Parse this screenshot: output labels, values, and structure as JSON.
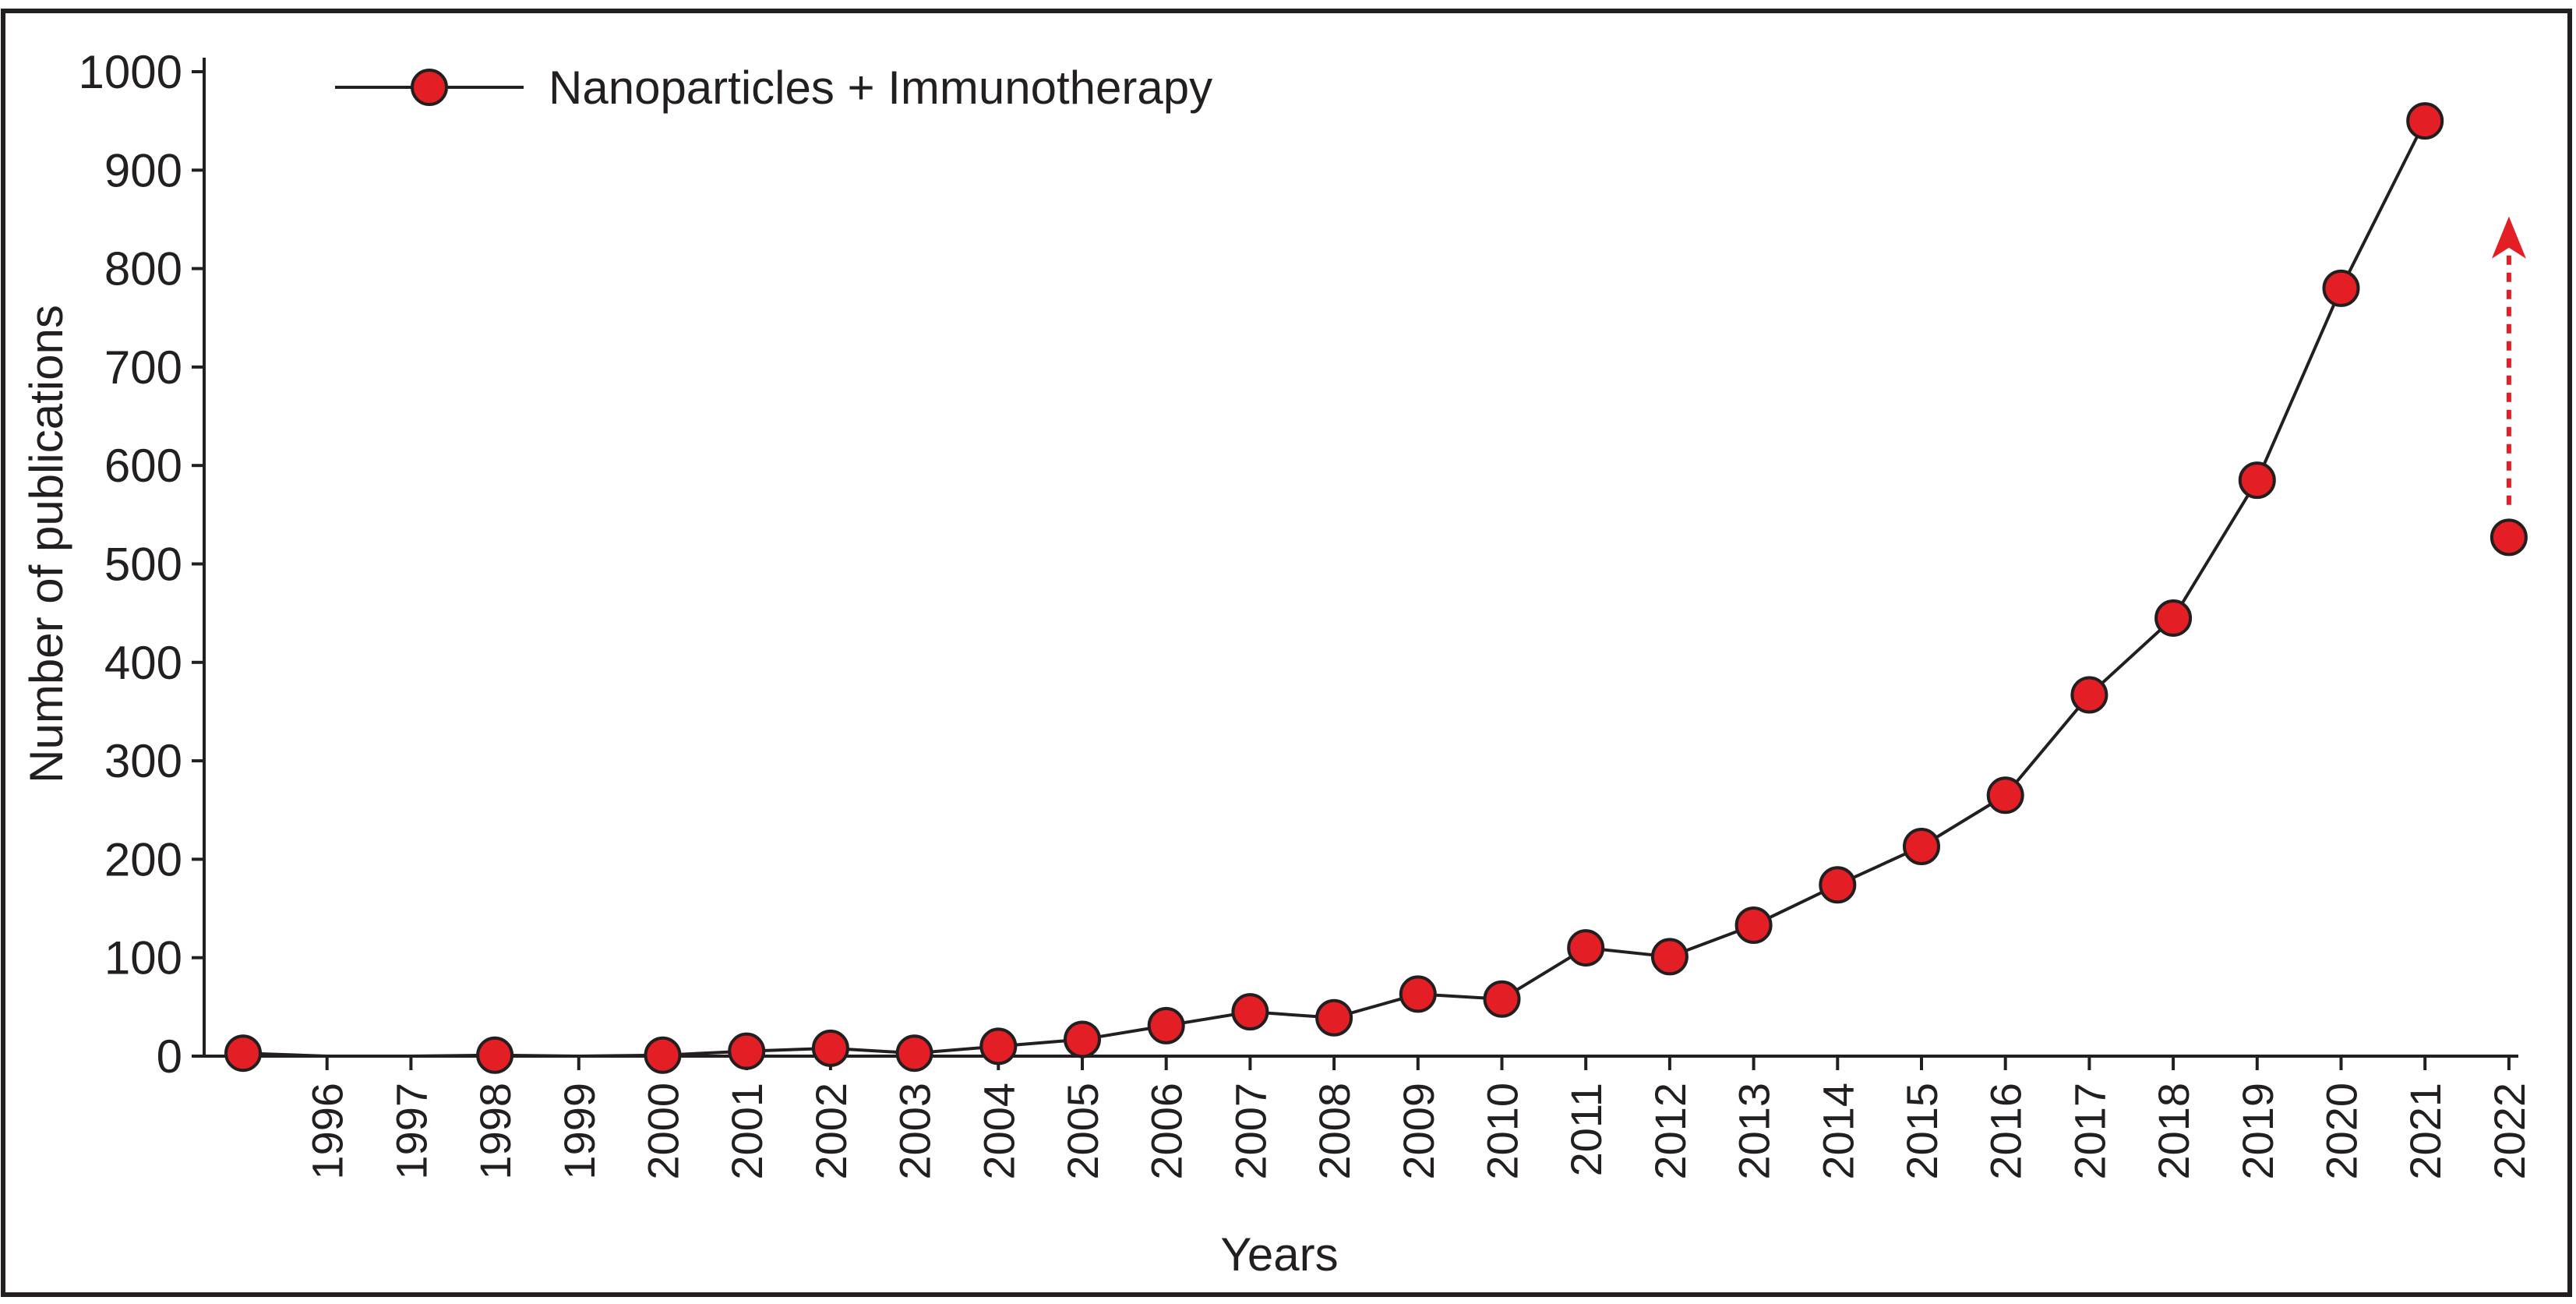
{
  "chart_data": {
    "type": "line",
    "title": "",
    "xlabel": "Years",
    "ylabel": "Number of publications",
    "ylim": [
      0,
      1000
    ],
    "yticks": [
      0,
      100,
      200,
      300,
      400,
      500,
      600,
      700,
      800,
      900,
      1000
    ],
    "x_tick_labels": [
      "1996",
      "1997",
      "1998",
      "1999",
      "2000",
      "2001",
      "2002",
      "2003",
      "2004",
      "2005",
      "2006",
      "2007",
      "2008",
      "2009",
      "2010",
      "2011",
      "2012",
      "2013",
      "2014",
      "2015",
      "2016",
      "2017",
      "2018",
      "2019",
      "2020",
      "2021",
      "2022"
    ],
    "legend": {
      "placement": "top-left",
      "label": "Nanoparticles + Immunotherapy"
    },
    "series": [
      {
        "name": "Nanoparticles + Immunotherapy",
        "color": "#e31e24",
        "line_color": "#231f20",
        "points": [
          {
            "x": 1995,
            "y": 3
          },
          {
            "x": 1996,
            "y": 0
          },
          {
            "x": 1997,
            "y": 0
          },
          {
            "x": 1998,
            "y": 1
          },
          {
            "x": 1999,
            "y": 0
          },
          {
            "x": 2000,
            "y": 1
          },
          {
            "x": 2001,
            "y": 5
          },
          {
            "x": 2002,
            "y": 8
          },
          {
            "x": 2003,
            "y": 3
          },
          {
            "x": 2004,
            "y": 10
          },
          {
            "x": 2005,
            "y": 17
          },
          {
            "x": 2006,
            "y": 31
          },
          {
            "x": 2007,
            "y": 45
          },
          {
            "x": 2008,
            "y": 39
          },
          {
            "x": 2009,
            "y": 63
          },
          {
            "x": 2010,
            "y": 58
          },
          {
            "x": 2011,
            "y": 110
          },
          {
            "x": 2012,
            "y": 101
          },
          {
            "x": 2013,
            "y": 133
          },
          {
            "x": 2014,
            "y": 174
          },
          {
            "x": 2015,
            "y": 213
          },
          {
            "x": 2016,
            "y": 265
          },
          {
            "x": 2017,
            "y": 367
          },
          {
            "x": 2018,
            "y": 445
          },
          {
            "x": 2019,
            "y": 585
          },
          {
            "x": 2020,
            "y": 780
          },
          {
            "x": 2021,
            "y": 950
          }
        ],
        "markers_without_line": [
          {
            "x": 1996,
            "y": 0,
            "marker": false
          },
          {
            "x": 1997,
            "y": 0,
            "marker": false
          },
          {
            "x": 1999,
            "y": 0,
            "marker": false
          }
        ]
      }
    ],
    "standalone_points": [
      {
        "x": 2022,
        "y": 527,
        "color": "#e31e24"
      }
    ],
    "annotations": [
      {
        "type": "dashed-arrow",
        "x": 2022,
        "y_from": 560,
        "y_to": 845,
        "color": "#e31e24",
        "direction": "up"
      }
    ]
  }
}
